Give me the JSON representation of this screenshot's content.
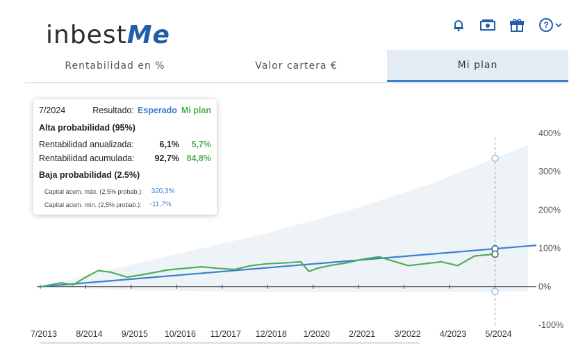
{
  "logo": {
    "text_main": "inbest",
    "text_accent": "Me"
  },
  "header_icons": [
    "bell-icon",
    "money-icon",
    "gift-icon",
    "help-icon"
  ],
  "tabs": [
    {
      "label": "Rentabilidad en %",
      "active": false
    },
    {
      "label": "Valor cartera €",
      "active": false
    },
    {
      "label": "Mi plan",
      "active": true
    }
  ],
  "tooltip": {
    "date": "7/2024",
    "resultado_label": "Resultado:",
    "esperado_label": "Esperado",
    "miplan_label": "Mi plan",
    "alta_title": "Alta probabilidad (95%)",
    "rent_anual_label": "Rentabilidad anualizada:",
    "rent_anual_esperado": "6,1%",
    "rent_anual_miplan": "5,7%",
    "rent_acum_label": "Rentabilidad acumulada:",
    "rent_acum_esperado": "92,7%",
    "rent_acum_miplan": "84,8%",
    "baja_title": "Baja probabilidad (2.5%)",
    "cap_max_label": "Capital acum. máx. (2,5% probab.):",
    "cap_max_value": "320,3%",
    "cap_min_label": "Capital acum. mín. (2,5% probab.):",
    "cap_min_value": "-11,7%"
  },
  "colors": {
    "esperado": "#3b7fd0",
    "miplan": "#4caf50",
    "band": "#eef3f8",
    "band_top": "#eff6f2"
  },
  "chart_data": {
    "type": "line",
    "x_tick_labels": [
      "7/2013",
      "8/2014",
      "9/2015",
      "10/2016",
      "11/2017",
      "12/2018",
      "1/2020",
      "2/2021",
      "3/2022",
      "4/2023",
      "5/2024"
    ],
    "y_tick_labels": [
      "400%",
      "300%",
      "200%",
      "100%",
      "0%",
      "-100%"
    ],
    "ylim": [
      -100,
      400
    ],
    "x_range": [
      2013.5,
      2025.5
    ],
    "grid": false,
    "cursor_x": 2024.5,
    "series": [
      {
        "name": "Esperado",
        "x": [
          2013.5,
          2025.5
        ],
        "y": [
          0,
          108
        ]
      },
      {
        "name": "Mi plan",
        "x": [
          2013.5,
          2014.0,
          2014.3,
          2014.6,
          2014.9,
          2015.2,
          2015.6,
          2015.9,
          2016.3,
          2016.6,
          2017.0,
          2017.4,
          2017.8,
          2018.2,
          2018.6,
          2019.0,
          2019.4,
          2019.8,
          2020.0,
          2020.2,
          2020.5,
          2020.9,
          2021.3,
          2021.7,
          2022.0,
          2022.4,
          2022.8,
          2023.2,
          2023.6,
          2024.0,
          2024.5
        ],
        "y": [
          0,
          10,
          5,
          25,
          42,
          38,
          25,
          30,
          38,
          44,
          48,
          52,
          48,
          45,
          55,
          60,
          62,
          65,
          40,
          48,
          55,
          62,
          72,
          78,
          68,
          55,
          60,
          65,
          55,
          80,
          85
        ]
      },
      {
        "name": "Capital acum. máx. (2,5% probab.)",
        "x": [
          2013.5,
          2015.0,
          2017.0,
          2019.0,
          2021.0,
          2023.0,
          2025.3
        ],
        "y": [
          0,
          40,
          90,
          140,
          200,
          270,
          370
        ]
      },
      {
        "name": "Capital acum. mín. (2,5% probab.)",
        "x": [
          2013.5,
          2016.0,
          2019.0,
          2022.0,
          2025.3
        ],
        "y": [
          0,
          -10,
          -14,
          -15,
          -12
        ]
      }
    ]
  }
}
